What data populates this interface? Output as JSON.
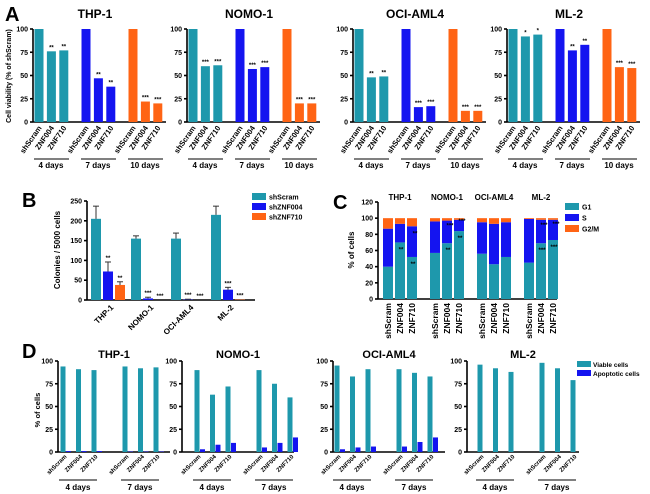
{
  "colors": {
    "teal": "#1e98ac",
    "blue": "#1414f0",
    "orange": "#ff6414"
  },
  "chart_data": [
    {
      "panel": "A",
      "type": "bar",
      "ylabel": "Cell viability (% of shScram)",
      "ylim": [
        0,
        100
      ],
      "yticks": [
        0,
        25,
        50,
        75,
        100
      ],
      "categories": [
        "shScram",
        "ZNF004",
        "ZNF710"
      ],
      "groups": [
        "4 days",
        "7 days",
        "10 days"
      ],
      "group_colors": [
        "teal",
        "blue",
        "orange"
      ],
      "subplots": [
        {
          "title": "THP-1",
          "values": [
            [
              100,
              76,
              77
            ],
            [
              100,
              47,
              38
            ],
            [
              100,
              22,
              20
            ]
          ],
          "stars": [
            [
              "",
              "**",
              "**"
            ],
            [
              "",
              "**",
              "**"
            ],
            [
              "",
              "***",
              "***"
            ]
          ]
        },
        {
          "title": "NOMO-1",
          "values": [
            [
              100,
              60,
              61
            ],
            [
              100,
              57,
              59
            ],
            [
              100,
              20,
              20
            ]
          ],
          "stars": [
            [
              "",
              "***",
              "***"
            ],
            [
              "",
              "***",
              "***"
            ],
            [
              "",
              "***",
              "***"
            ]
          ]
        },
        {
          "title": "OCI-AML4",
          "values": [
            [
              100,
              48,
              49
            ],
            [
              100,
              16,
              17
            ],
            [
              100,
              12,
              12
            ]
          ],
          "stars": [
            [
              "",
              "**",
              "**"
            ],
            [
              "",
              "***",
              "***"
            ],
            [
              "",
              "***",
              "***"
            ]
          ]
        },
        {
          "title": "ML-2",
          "values": [
            [
              100,
              92,
              94
            ],
            [
              100,
              77,
              83
            ],
            [
              100,
              59,
              58
            ]
          ],
          "stars": [
            [
              "",
              "*",
              "*"
            ],
            [
              "",
              "**",
              "**"
            ],
            [
              "",
              "***",
              "***"
            ]
          ]
        }
      ]
    },
    {
      "panel": "B",
      "type": "bar",
      "ylabel": "Colonies / 5000 cells",
      "ylim": [
        0,
        250
      ],
      "yticks": [
        0,
        50,
        100,
        150,
        200,
        250
      ],
      "categories": [
        "THP-1",
        "NOMO-1",
        "OCI-AML4",
        "ML-2"
      ],
      "legend_position": "top-right",
      "series": [
        {
          "name": "shScram",
          "color": "teal",
          "values": [
            205,
            155,
            155,
            215
          ],
          "err": [
            32,
            7,
            14,
            22
          ],
          "stars": [
            "",
            "",
            "",
            ""
          ]
        },
        {
          "name": "shZNF004",
          "color": "blue",
          "values": [
            72,
            4,
            1,
            26
          ],
          "err": [
            24,
            3,
            1,
            6
          ],
          "stars": [
            "**",
            "***",
            "***",
            "***"
          ]
        },
        {
          "name": "shZNF710",
          "color": "orange",
          "values": [
            38,
            0,
            0,
            1
          ],
          "err": [
            8,
            0,
            0,
            0
          ],
          "stars": [
            "**",
            "***",
            "***",
            "***"
          ]
        }
      ]
    },
    {
      "panel": "C",
      "type": "stacked-bar",
      "ylabel": "% of cells",
      "ylim": [
        0,
        120
      ],
      "yticks": [
        0,
        20,
        40,
        60,
        80,
        100,
        120
      ],
      "legend_position": "right",
      "categories": [
        "shScram",
        "ZNF004",
        "ZNF710"
      ],
      "series_names": [
        "G1",
        "S",
        "G2/M"
      ],
      "series_colors": [
        "teal",
        "blue",
        "orange"
      ],
      "groups": [
        {
          "title": "THP-1",
          "G1": [
            40,
            70,
            52
          ],
          "S": [
            47,
            23,
            38
          ],
          "G2M": [
            13,
            7,
            10
          ],
          "stars_G1": [
            "",
            "**",
            "**"
          ],
          "stars_S": [
            "",
            "",
            "**"
          ]
        },
        {
          "title": "NOMO-1",
          "G1": [
            57,
            69,
            84
          ],
          "S": [
            39,
            28,
            14
          ],
          "G2M": [
            4,
            3,
            2
          ],
          "stars_G1": [
            "",
            "**",
            "**"
          ],
          "stars_S": [
            "",
            "***",
            "***"
          ]
        },
        {
          "title": "OCI-AML4",
          "G1": [
            56,
            43,
            52
          ],
          "S": [
            39,
            50,
            43
          ],
          "G2M": [
            5,
            7,
            5
          ],
          "stars_G1": [
            "",
            "",
            ""
          ],
          "stars_S": [
            "",
            "",
            ""
          ]
        },
        {
          "title": "ML-2",
          "G1": [
            45,
            69,
            73
          ],
          "S": [
            54,
            29,
            25
          ],
          "G2M": [
            1,
            2,
            2
          ],
          "stars_G1": [
            "",
            "***",
            "***"
          ],
          "stars_S": [
            "",
            "***",
            "***"
          ]
        }
      ]
    },
    {
      "panel": "D",
      "type": "bar",
      "ylabel": "% of cells",
      "ylim": [
        0,
        100
      ],
      "yticks": [
        0,
        25,
        50,
        75,
        100
      ],
      "categories": [
        "shScram",
        "ZNF004",
        "ZNF710"
      ],
      "groups": [
        "4 days",
        "7 days"
      ],
      "legend_position": "top-right",
      "series_names": [
        "Viable cells",
        "Apoptotic cells"
      ],
      "series_colors": [
        "teal",
        "blue"
      ],
      "subplots": [
        {
          "title": "THP-1",
          "viable": [
            94,
            91,
            90,
            94,
            92,
            93
          ],
          "apoptotic": [
            1,
            1,
            1,
            0.5,
            0.5,
            0.5
          ]
        },
        {
          "title": "NOMO-1",
          "viable": [
            90,
            63,
            72,
            90,
            75,
            60
          ],
          "apoptotic": [
            3,
            8,
            10,
            5,
            10,
            16
          ]
        },
        {
          "title": "OCI-AML4",
          "viable": [
            95,
            83,
            91,
            91,
            87,
            83
          ],
          "apoptotic": [
            3,
            5,
            6,
            6,
            11,
            16
          ]
        },
        {
          "title": "ML-2",
          "viable": [
            96,
            92,
            88,
            98,
            92,
            79
          ],
          "apoptotic": [
            0,
            0,
            0,
            0,
            0,
            0
          ]
        }
      ]
    }
  ]
}
